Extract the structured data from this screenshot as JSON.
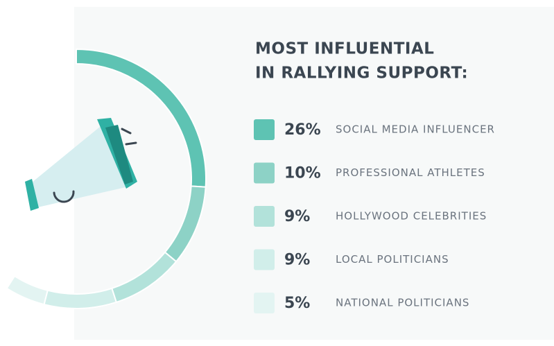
{
  "chart_data": {
    "type": "donut",
    "title": [
      "MOST INFLUENTIAL",
      "IN RALLYING SUPPORT:"
    ],
    "categories": [
      "SOCIAL MEDIA INFLUENCER",
      "PROFESSIONAL ATHLETES",
      "HOLLYWOOD CELEBRITIES",
      "LOCAL POLITICIANS",
      "NATIONAL POLITICIANS"
    ],
    "values": [
      26,
      10,
      9,
      9,
      5
    ],
    "value_labels": [
      "26%",
      "10%",
      "9%",
      "9%",
      "5%"
    ],
    "colors": [
      "#5ec3b3",
      "#8dd2c6",
      "#b2e2da",
      "#d1eeea",
      "#e3f4f2"
    ]
  }
}
